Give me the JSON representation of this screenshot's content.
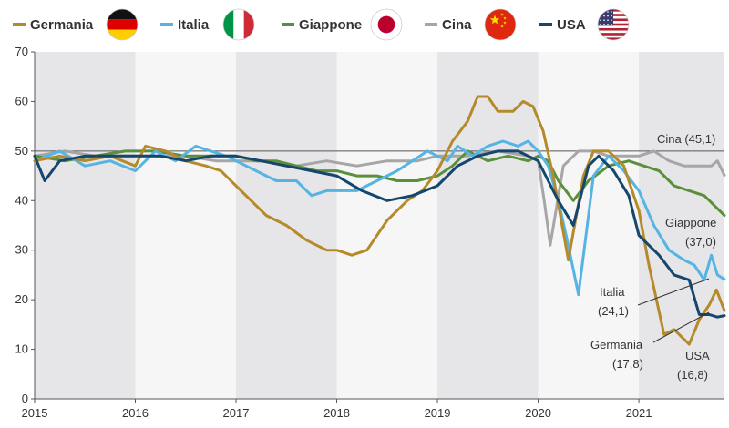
{
  "chart_data": {
    "type": "line",
    "title": "",
    "xlabel": "",
    "ylabel": "",
    "xlim": [
      2015,
      2021.85
    ],
    "ylim": [
      0,
      70
    ],
    "yticks": [
      0,
      10,
      20,
      30,
      40,
      50,
      60,
      70
    ],
    "xticks": [
      "2015",
      "2016",
      "2017",
      "2018",
      "2019",
      "2020",
      "2021"
    ],
    "grid": "alternating shaded year bands",
    "reference_line": 50,
    "legend_position": "top",
    "series": [
      {
        "name": "Germania",
        "color": "#b58a2a",
        "flag": "germany-flag",
        "x": [
          2015.0,
          2015.25,
          2015.5,
          2015.75,
          2016.0,
          2016.1,
          2016.3,
          2016.5,
          2016.7,
          2016.85,
          2017.0,
          2017.15,
          2017.3,
          2017.5,
          2017.7,
          2017.9,
          2018.0,
          2018.15,
          2018.3,
          2018.5,
          2018.7,
          2018.85,
          2019.0,
          2019.15,
          2019.3,
          2019.4,
          2019.5,
          2019.6,
          2019.75,
          2019.85,
          2019.95,
          2020.05,
          2020.15,
          2020.3,
          2020.45,
          2020.55,
          2020.7,
          2020.85,
          2021.0,
          2021.1,
          2021.25,
          2021.35,
          2021.5,
          2021.6,
          2021.7,
          2021.77,
          2021.85
        ],
        "y": [
          48,
          49,
          48,
          49,
          47,
          51,
          50,
          48,
          47,
          46,
          43,
          40,
          37,
          35,
          32,
          30,
          30,
          29,
          30,
          36,
          40,
          42,
          46,
          52,
          56,
          61,
          61,
          58,
          58,
          60,
          59,
          54,
          45,
          28,
          45,
          50,
          50,
          47,
          38,
          27,
          13,
          14,
          11,
          16,
          19,
          22,
          17.8
        ]
      },
      {
        "name": "Italia",
        "color": "#56b4e3",
        "flag": "italy-flag",
        "x": [
          2015.0,
          2015.25,
          2015.5,
          2015.75,
          2016.0,
          2016.2,
          2016.4,
          2016.6,
          2016.75,
          2016.9,
          2017.0,
          2017.2,
          2017.4,
          2017.6,
          2017.75,
          2017.9,
          2018.0,
          2018.2,
          2018.4,
          2018.6,
          2018.75,
          2018.9,
          2019.0,
          2019.1,
          2019.2,
          2019.35,
          2019.5,
          2019.65,
          2019.8,
          2019.9,
          2020.0,
          2020.1,
          2020.2,
          2020.3,
          2020.4,
          2020.55,
          2020.7,
          2020.85,
          2021.0,
          2021.15,
          2021.3,
          2021.45,
          2021.55,
          2021.65,
          2021.72,
          2021.78,
          2021.85
        ],
        "y": [
          48,
          50,
          47,
          48,
          46,
          50,
          48,
          51,
          50,
          49,
          48,
          46,
          44,
          44,
          41,
          42,
          42,
          42,
          44,
          46,
          48,
          50,
          49,
          48,
          51,
          49,
          51,
          52,
          51,
          52,
          50,
          47,
          40,
          31,
          21,
          45,
          49,
          46,
          42,
          35,
          30,
          28,
          27,
          24,
          29,
          25,
          24.1
        ]
      },
      {
        "name": "Giappone",
        "color": "#5a8f3c",
        "flag": "japan-flag",
        "x": [
          2015.0,
          2015.3,
          2015.6,
          2015.9,
          2016.2,
          2016.5,
          2016.8,
          2017.0,
          2017.2,
          2017.4,
          2017.6,
          2017.8,
          2018.0,
          2018.2,
          2018.4,
          2018.6,
          2018.8,
          2019.0,
          2019.15,
          2019.3,
          2019.5,
          2019.7,
          2019.9,
          2020.0,
          2020.1,
          2020.2,
          2020.35,
          2020.5,
          2020.7,
          2020.9,
          2021.05,
          2021.2,
          2021.35,
          2021.5,
          2021.65,
          2021.75,
          2021.85
        ],
        "y": [
          49,
          48,
          49,
          50,
          50,
          49,
          49,
          49,
          48,
          48,
          47,
          46,
          46,
          45,
          45,
          44,
          44,
          45,
          47,
          50,
          48,
          49,
          48,
          49,
          48,
          44,
          40,
          44,
          47,
          48,
          47,
          46,
          43,
          42,
          41,
          39,
          37.0
        ]
      },
      {
        "name": "Cina",
        "color": "#a6a6a6",
        "flag": "china-flag",
        "x": [
          2015.0,
          2015.3,
          2015.6,
          2015.9,
          2016.2,
          2016.5,
          2016.8,
          2017.0,
          2017.3,
          2017.6,
          2017.9,
          2018.2,
          2018.5,
          2018.8,
          2019.0,
          2019.3,
          2019.6,
          2019.9,
          2020.0,
          2020.06,
          2020.12,
          2020.25,
          2020.4,
          2020.55,
          2020.7,
          2020.85,
          2021.0,
          2021.15,
          2021.3,
          2021.45,
          2021.6,
          2021.72,
          2021.78,
          2021.85
        ],
        "y": [
          49,
          50,
          49,
          49,
          49,
          49,
          48,
          48,
          48,
          47,
          48,
          47,
          48,
          48,
          49,
          49,
          50,
          49,
          48,
          40,
          31,
          47,
          50,
          50,
          49,
          49,
          49,
          50,
          48,
          47,
          47,
          47,
          48,
          45.1
        ]
      },
      {
        "name": "USA",
        "color": "#15466e",
        "flag": "usa-flag",
        "x": [
          2015.0,
          2015.1,
          2015.25,
          2015.5,
          2015.75,
          2016.0,
          2016.25,
          2016.5,
          2016.75,
          2017.0,
          2017.25,
          2017.5,
          2017.75,
          2018.0,
          2018.25,
          2018.5,
          2018.75,
          2019.0,
          2019.2,
          2019.4,
          2019.6,
          2019.8,
          2020.0,
          2020.1,
          2020.2,
          2020.35,
          2020.5,
          2020.6,
          2020.75,
          2020.9,
          2021.0,
          2021.2,
          2021.35,
          2021.5,
          2021.6,
          2021.7,
          2021.78,
          2021.85
        ],
        "y": [
          49,
          44,
          48,
          49,
          49,
          49,
          49,
          48,
          49,
          49,
          48,
          47,
          46,
          45,
          42,
          40,
          41,
          43,
          47,
          49,
          50,
          50,
          48,
          44,
          40,
          35,
          47,
          49,
          46,
          41,
          33,
          29,
          25,
          24,
          17,
          17,
          16.5,
          16.8
        ]
      }
    ],
    "annotations": [
      {
        "name": "cina",
        "label": "Cina (45,1)"
      },
      {
        "name": "giappone",
        "label": "Giappone",
        "value": "(37,0)"
      },
      {
        "name": "italia",
        "label": "Italia",
        "value": "(24,1)"
      },
      {
        "name": "germania",
        "label": "Germania",
        "value": "(17,8)"
      },
      {
        "name": "usa",
        "label": "USA",
        "value": "(16,8)"
      }
    ]
  }
}
